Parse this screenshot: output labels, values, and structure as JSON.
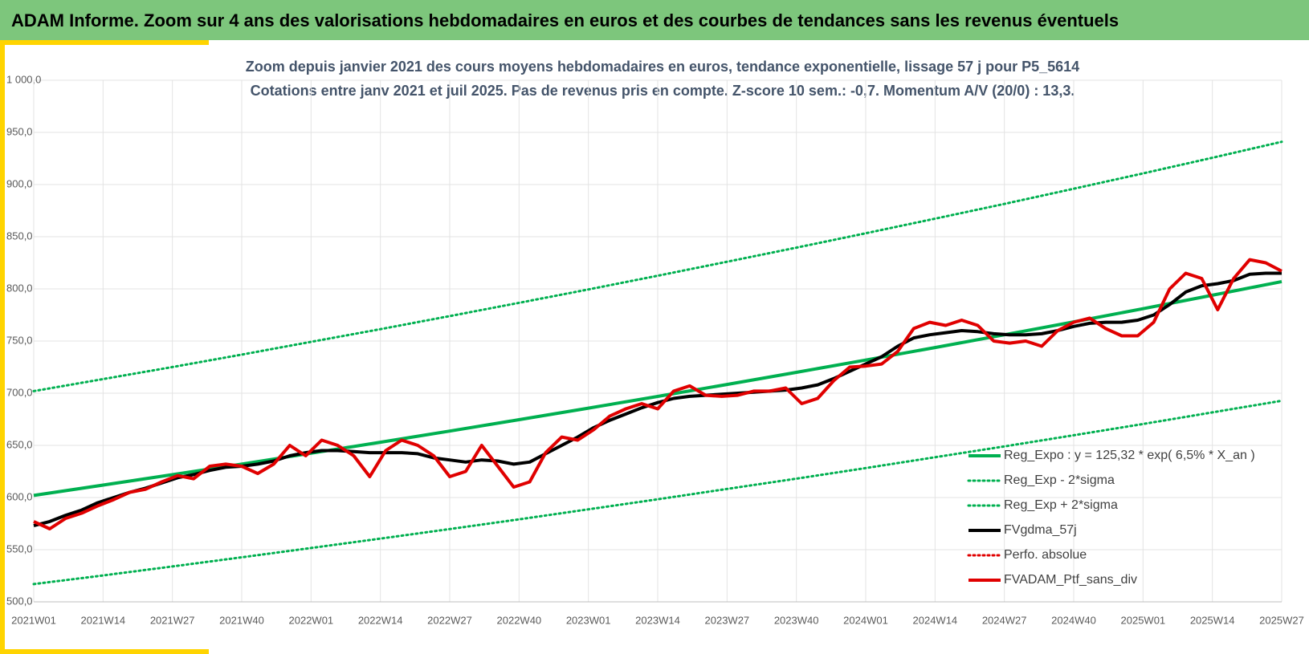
{
  "header": {
    "title": "ADAM Informe. Zoom sur 4 ans des valorisations hebdomadaires en euros et des courbes de tendances sans les revenus éventuels"
  },
  "chart_data": {
    "type": "line",
    "title": "Zoom depuis janvier 2021 des cours moyens hebdomadaires  en euros, tendance exponentielle, lissage 57 j pour P5_5614",
    "subtitle": "Cotations entre janv 2021 et juil 2025. Pas de revenus pris en compte. Z-score 10 sem.: -0,7. Momentum A/V (20/0) : 13,3.",
    "xlim": [
      0,
      234
    ],
    "xticks": [
      {
        "value": 0,
        "label": "2021W01"
      },
      {
        "value": 13,
        "label": "2021W14"
      },
      {
        "value": 26,
        "label": "2021W27"
      },
      {
        "value": 39,
        "label": "2021W40"
      },
      {
        "value": 52,
        "label": "2022W01"
      },
      {
        "value": 65,
        "label": "2022W14"
      },
      {
        "value": 78,
        "label": "2022W27"
      },
      {
        "value": 91,
        "label": "2022W40"
      },
      {
        "value": 104,
        "label": "2023W01"
      },
      {
        "value": 117,
        "label": "2023W14"
      },
      {
        "value": 130,
        "label": "2023W27"
      },
      {
        "value": 143,
        "label": "2023W40"
      },
      {
        "value": 156,
        "label": "2024W01"
      },
      {
        "value": 169,
        "label": "2024W14"
      },
      {
        "value": 182,
        "label": "2024W27"
      },
      {
        "value": 195,
        "label": "2024W40"
      },
      {
        "value": 208,
        "label": "2025W01"
      },
      {
        "value": 221,
        "label": "2025W14"
      },
      {
        "value": 234,
        "label": "2025W27"
      }
    ],
    "ylim": [
      500,
      1000
    ],
    "yticks": [
      {
        "value": 500,
        "label": "500,0"
      },
      {
        "value": 550,
        "label": "550,0"
      },
      {
        "value": 600,
        "label": "600,0"
      },
      {
        "value": 650,
        "label": "650,0"
      },
      {
        "value": 700,
        "label": "700,0"
      },
      {
        "value": 750,
        "label": "750,0"
      },
      {
        "value": 800,
        "label": "800,0"
      },
      {
        "value": 850,
        "label": "850,0"
      },
      {
        "value": 900,
        "label": "900,0"
      },
      {
        "value": 950,
        "label": "950,0"
      },
      {
        "value": 1000,
        "label": "1 000,0"
      }
    ],
    "grid": true,
    "legend": "lower right",
    "x": [
      0,
      3,
      6,
      9,
      12,
      15,
      18,
      21,
      24,
      27,
      30,
      33,
      36,
      39,
      42,
      45,
      48,
      51,
      54,
      57,
      60,
      63,
      66,
      69,
      72,
      75,
      78,
      81,
      84,
      87,
      90,
      93,
      96,
      99,
      102,
      105,
      108,
      111,
      114,
      117,
      120,
      123,
      126,
      129,
      132,
      135,
      138,
      141,
      144,
      147,
      150,
      153,
      156,
      159,
      162,
      165,
      168,
      171,
      174,
      177,
      180,
      183,
      186,
      189,
      192,
      195,
      198,
      201,
      204,
      207,
      210,
      213,
      216,
      219,
      222,
      225,
      228,
      231,
      234
    ],
    "series": [
      {
        "name": "Reg_Expo : y = 125,32 * exp( 6,5% *  X_an )",
        "color": "#00b050",
        "style": "solid",
        "width": 4,
        "x": [
          0,
          13,
          26,
          39,
          52,
          65,
          78,
          91,
          104,
          117,
          130,
          143,
          156,
          169,
          182,
          195,
          208,
          221,
          234
        ],
        "values": [
          602,
          611.9,
          621.9,
          632.1,
          642.5,
          653,
          663.7,
          674.6,
          685.7,
          696.9,
          708.4,
          720,
          731.8,
          743.8,
          756,
          768.4,
          781,
          793.9,
          807
        ]
      },
      {
        "name": "Reg_Exp - 2*sigma",
        "color": "#00b050",
        "style": "dotted",
        "width": 3,
        "x": [
          0,
          13,
          26,
          39,
          52,
          65,
          78,
          91,
          104,
          117,
          130,
          143,
          156,
          169,
          182,
          195,
          208,
          221,
          234
        ],
        "values": [
          517,
          525.3,
          533.9,
          542.7,
          551.6,
          560.6,
          569.8,
          579.1,
          588.7,
          598.3,
          608.2,
          618.1,
          628.2,
          638.6,
          649,
          659.7,
          670.5,
          681.6,
          692.8
        ]
      },
      {
        "name": "Reg_Exp + 2*sigma",
        "color": "#00b050",
        "style": "dotted",
        "width": 3,
        "x": [
          0,
          13,
          26,
          39,
          52,
          65,
          78,
          91,
          104,
          117,
          130,
          143,
          156,
          169,
          182,
          195,
          208,
          221,
          234
        ],
        "values": [
          702,
          713.5,
          725.1,
          737,
          749.2,
          761.4,
          773.9,
          786.6,
          799.5,
          812.6,
          826,
          839.5,
          853.3,
          867.3,
          881.5,
          896,
          910.7,
          925.7,
          941
        ]
      },
      {
        "name": "FVgdma_57j",
        "color": "#000000",
        "style": "solid",
        "width": 4,
        "values": [
          573,
          577,
          583,
          588,
          595,
          600,
          605,
          609,
          614,
          619,
          622,
          626,
          629,
          630,
          632,
          635,
          640,
          643,
          645,
          645,
          644,
          643,
          643,
          643,
          642,
          638,
          636,
          634,
          636,
          635,
          632,
          634,
          642,
          650,
          658,
          667,
          674,
          680,
          686,
          691,
          695,
          697,
          698,
          699,
          700,
          701,
          702,
          703,
          705,
          708,
          714,
          721,
          728,
          735,
          745,
          753,
          756,
          758,
          760,
          759,
          757,
          756,
          756,
          757,
          760,
          764,
          767,
          768,
          768,
          770,
          775,
          785,
          797,
          803,
          805,
          808,
          814,
          815,
          815
        ]
      },
      {
        "name": "Perfo. absolue",
        "color": "#e00000",
        "style": "dotted",
        "width": 3
      },
      {
        "name": "FVADAM_Ptf_sans_div",
        "color": "#e00000",
        "style": "solid",
        "width": 4,
        "values": [
          577,
          570,
          580,
          585,
          592,
          598,
          605,
          608,
          615,
          621,
          618,
          630,
          632,
          630,
          623,
          632,
          650,
          640,
          655,
          650,
          640,
          620,
          645,
          655,
          650,
          640,
          620,
          625,
          650,
          630,
          610,
          615,
          643,
          658,
          655,
          665,
          678,
          685,
          690,
          685,
          702,
          707,
          698,
          697,
          698,
          702,
          702,
          705,
          690,
          695,
          712,
          725,
          726,
          728,
          740,
          762,
          768,
          765,
          770,
          765,
          750,
          748,
          750,
          745,
          760,
          768,
          772,
          762,
          755,
          755,
          768,
          800,
          815,
          810,
          780,
          810,
          828,
          825,
          817
        ]
      }
    ]
  }
}
